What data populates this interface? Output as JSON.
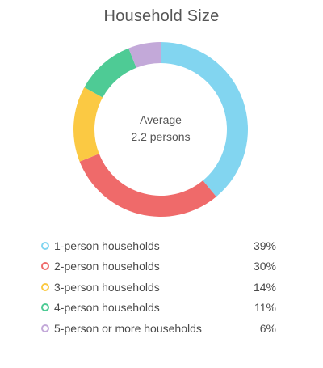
{
  "chart_data": {
    "type": "pie",
    "title": "Household Size",
    "center_label": "Average",
    "center_value": "2.2 persons",
    "slices": [
      {
        "label": "1-person households",
        "value": 39,
        "display": "39%",
        "color": "#82d5f0"
      },
      {
        "label": "2-person households",
        "value": 30,
        "display": "30%",
        "color": "#ef6a6a"
      },
      {
        "label": "3-person households",
        "value": 14,
        "display": "14%",
        "color": "#fbc943"
      },
      {
        "label": "4-person households",
        "value": 11,
        "display": "11%",
        "color": "#4ecb95"
      },
      {
        "label": "5-person or more households",
        "value": 6,
        "display": "6%",
        "color": "#c3a9d9"
      }
    ]
  }
}
